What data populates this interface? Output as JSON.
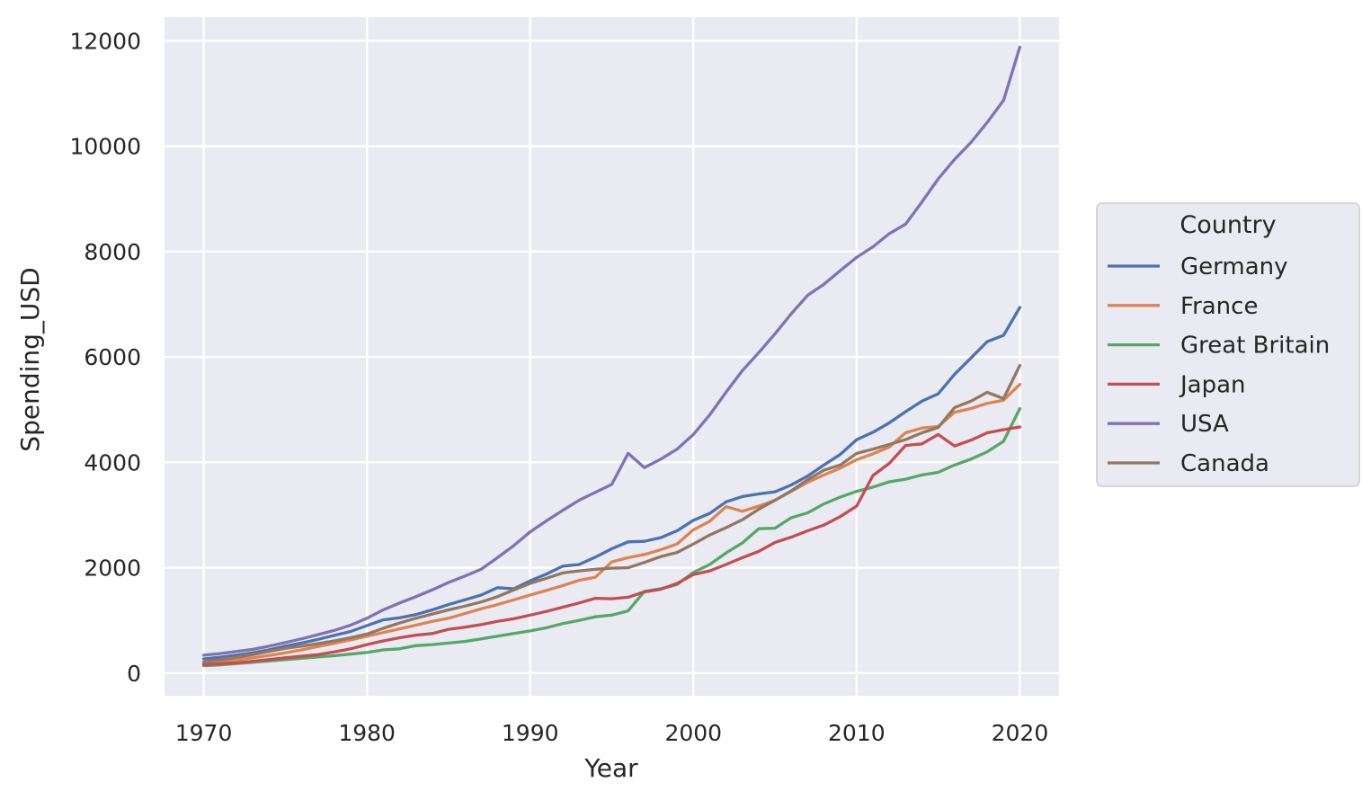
{
  "chart_data": {
    "type": "line",
    "title": "",
    "xlabel": "Year",
    "ylabel": "Spending_USD",
    "xlim": [
      1967.6,
      2022.4
    ],
    "ylim": [
      -430,
      12450
    ],
    "xticks": [
      1970,
      1980,
      1990,
      2000,
      2010,
      2020
    ],
    "yticks": [
      0,
      2000,
      4000,
      6000,
      8000,
      10000,
      12000
    ],
    "grid": true,
    "legend": {
      "title": "Country",
      "position": "right"
    },
    "x": [
      1970,
      1971,
      1972,
      1973,
      1974,
      1975,
      1976,
      1977,
      1978,
      1979,
      1980,
      1981,
      1982,
      1983,
      1984,
      1985,
      1986,
      1987,
      1988,
      1989,
      1990,
      1991,
      1992,
      1993,
      1994,
      1995,
      1996,
      1997,
      1998,
      1999,
      2000,
      2001,
      2002,
      2003,
      2004,
      2005,
      2006,
      2007,
      2008,
      2009,
      2010,
      2011,
      2012,
      2013,
      2014,
      2015,
      2016,
      2017,
      2018,
      2019,
      2020
    ],
    "series": [
      {
        "name": "Germany",
        "color": "#4c72b0",
        "values": [
          270,
          300,
          340,
          385,
          440,
          510,
          570,
          640,
          715,
          790,
          900,
          1010,
          1050,
          1110,
          1200,
          1300,
          1390,
          1480,
          1620,
          1600,
          1750,
          1880,
          2030,
          2060,
          2200,
          2360,
          2490,
          2500,
          2570,
          2700,
          2900,
          3030,
          3250,
          3350,
          3400,
          3440,
          3570,
          3740,
          3950,
          4150,
          4430,
          4570,
          4750,
          4960,
          5160,
          5300,
          5670,
          5980,
          6290,
          6410,
          6940
        ]
      },
      {
        "name": "France",
        "color": "#dd8452",
        "values": [
          190,
          215,
          250,
          290,
          335,
          385,
          440,
          505,
          565,
          630,
          700,
          770,
          840,
          910,
          980,
          1040,
          1130,
          1220,
          1300,
          1390,
          1480,
          1570,
          1660,
          1760,
          1820,
          2110,
          2190,
          2250,
          2340,
          2450,
          2720,
          2880,
          3160,
          3070,
          3170,
          3280,
          3450,
          3620,
          3760,
          3890,
          4050,
          4160,
          4290,
          4560,
          4650,
          4680,
          4950,
          5020,
          5120,
          5180,
          5480
        ]
      },
      {
        "name": "Great Britain",
        "color": "#55a868",
        "values": [
          140,
          155,
          180,
          205,
          230,
          255,
          280,
          305,
          330,
          360,
          390,
          440,
          460,
          520,
          540,
          570,
          600,
          650,
          700,
          750,
          800,
          860,
          940,
          1000,
          1070,
          1100,
          1180,
          1550,
          1600,
          1680,
          1910,
          2060,
          2280,
          2470,
          2740,
          2750,
          2950,
          3040,
          3210,
          3340,
          3450,
          3530,
          3630,
          3680,
          3760,
          3810,
          3950,
          4060,
          4200,
          4400,
          5020
        ]
      },
      {
        "name": "Japan",
        "color": "#c44e52",
        "values": [
          160,
          175,
          195,
          225,
          255,
          290,
          320,
          350,
          400,
          460,
          540,
          610,
          670,
          720,
          750,
          830,
          870,
          920,
          980,
          1030,
          1100,
          1170,
          1250,
          1330,
          1420,
          1410,
          1440,
          1540,
          1590,
          1700,
          1870,
          1940,
          2060,
          2190,
          2310,
          2480,
          2580,
          2700,
          2810,
          2970,
          3170,
          3750,
          3980,
          4320,
          4350,
          4530,
          4310,
          4420,
          4560,
          4620,
          4670
        ]
      },
      {
        "name": "USA",
        "color": "#8172b3",
        "values": [
          340,
          370,
          410,
          450,
          510,
          580,
          650,
          730,
          810,
          910,
          1040,
          1200,
          1330,
          1450,
          1580,
          1720,
          1840,
          1970,
          2190,
          2420,
          2680,
          2890,
          3090,
          3280,
          3430,
          3580,
          4170,
          3900,
          4060,
          4250,
          4530,
          4900,
          5330,
          5740,
          6080,
          6440,
          6820,
          7170,
          7380,
          7640,
          7890,
          8090,
          8340,
          8520,
          8940,
          9380,
          9750,
          10070,
          10450,
          10870,
          11880
        ]
      },
      {
        "name": "Canada",
        "color": "#937860",
        "values": [
          210,
          250,
          300,
          350,
          410,
          470,
          510,
          560,
          610,
          670,
          740,
          850,
          950,
          1040,
          1120,
          1200,
          1270,
          1350,
          1450,
          1580,
          1700,
          1800,
          1900,
          1940,
          1970,
          1990,
          2000,
          2100,
          2210,
          2290,
          2450,
          2620,
          2760,
          2910,
          3110,
          3280,
          3460,
          3670,
          3850,
          3950,
          4170,
          4250,
          4340,
          4430,
          4560,
          4660,
          5040,
          5160,
          5330,
          5210,
          5840
        ]
      }
    ]
  }
}
